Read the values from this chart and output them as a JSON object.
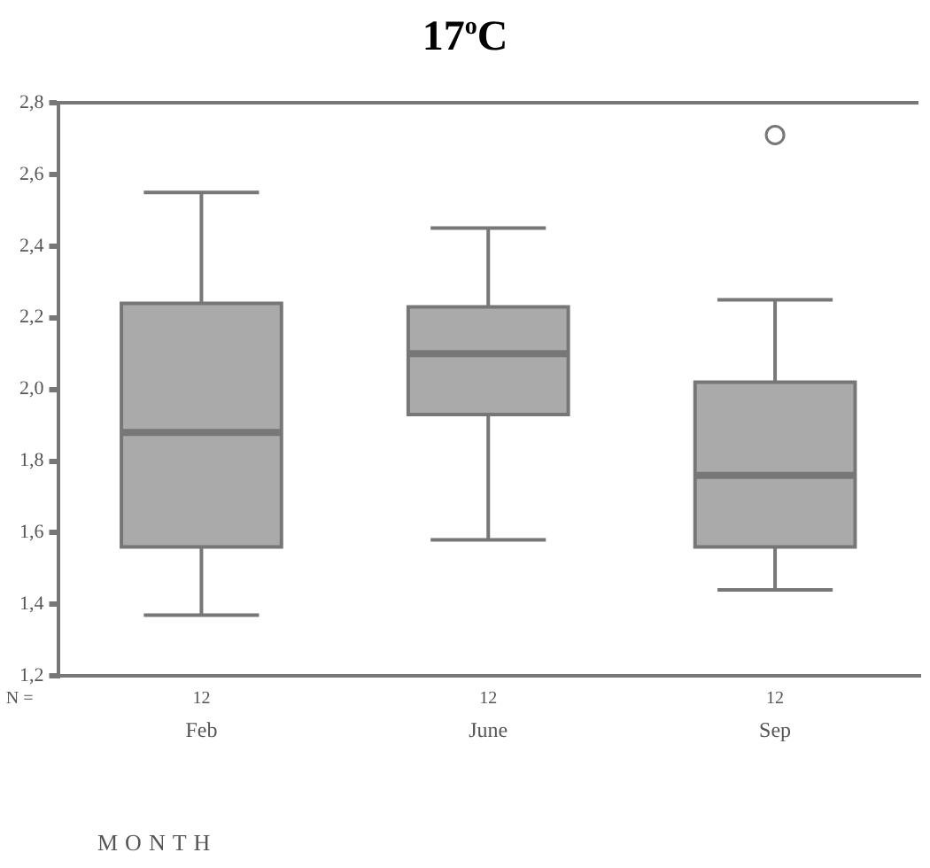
{
  "chart_data": {
    "type": "box",
    "title": "17$^{o}$C",
    "xlabel": "MONTH",
    "categories": [
      "Feb",
      "June",
      "Sep"
    ],
    "color": "#aaaaaa",
    "boxes": [
      {
        "low": 1.37,
        "q1": 1.56,
        "median": 1.88,
        "q3": 2.24,
        "high": 2.55
      },
      {
        "low": 1.58,
        "q1": 1.93,
        "median": 2.1,
        "q3": 2.23,
        "high": 2.45
      },
      {
        "low": 1.44,
        "q1": 1.56,
        "median": 1.76,
        "q3": 2.02,
        "high": 2.25,
        "outliers": [
          2.71
        ]
      }
    ],
    "ylim": [
      1.2,
      2.8
    ],
    "yticks": [
      {
        "value": 1.2,
        "label": "1,2"
      },
      {
        "value": 1.4,
        "label": "1,4"
      },
      {
        "value": 1.6,
        "label": "1,6"
      },
      {
        "value": 1.8,
        "label": "1,8"
      },
      {
        "value": 2.0,
        "label": "2,0"
      },
      {
        "value": 2.2,
        "label": "2,2"
      },
      {
        "value": 2.4,
        "label": "2,4"
      },
      {
        "value": 2.6,
        "label": "2,6"
      },
      {
        "value": 2.8,
        "label": "2,8"
      }
    ],
    "grid": false,
    "annotations": [
      "N =",
      "12",
      "12",
      "12"
    ]
  }
}
